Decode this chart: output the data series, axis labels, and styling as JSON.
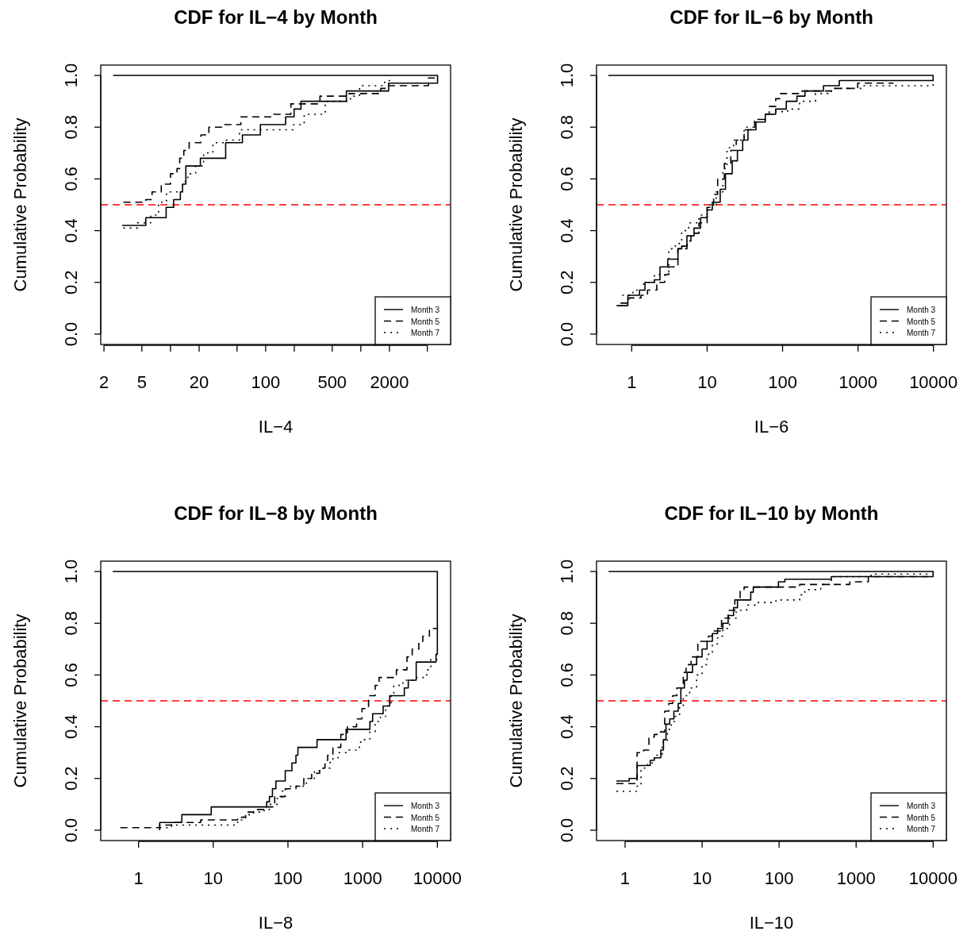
{
  "chart_data": [
    {
      "type": "step",
      "title": "CDF for IL−4 by Month",
      "xlabel": "IL−4",
      "ylabel": "Cumulative Probability",
      "log": "x",
      "legend": "bottom right",
      "xlim": [
        1.85,
        8770
      ],
      "ylim": [
        -0.04,
        1.04
      ],
      "xticks": [
        2,
        5,
        {
          "value": 10,
          "label": null
        },
        20,
        {
          "value": 50,
          "label": null
        },
        100,
        {
          "value": 200,
          "label": null
        },
        500,
        {
          "value": 1000,
          "label": null
        },
        2000,
        {
          "value": 5000,
          "label": null
        }
      ],
      "yticks": [
        {
          "value": 0,
          "label": "0.0"
        },
        {
          "value": 0.2,
          "label": "0.2"
        },
        {
          "value": 0.4,
          "label": "0.4"
        },
        {
          "value": 0.6,
          "label": "0.6"
        },
        {
          "value": 0.8,
          "label": "0.8"
        },
        {
          "value": 1,
          "label": "1.0"
        }
      ],
      "ref_lines": [
        {
          "axis": "y",
          "value": 0.5,
          "color": "#ff0000",
          "line_style": "dashed"
        }
      ],
      "series": [
        {
          "name": "Month 3",
          "color": "#000000",
          "line_style": "solid",
          "x": [
            3.1,
            5.5,
            9,
            10.8,
            12.7,
            13.4,
            14.5,
            20.6,
            38,
            57,
            88,
            162,
            199,
            235,
            705,
            1960,
            6400,
            6400,
            2.5
          ],
          "values": [
            0.42,
            0.45,
            0.49,
            0.52,
            0.55,
            0.58,
            0.65,
            0.68,
            0.74,
            0.77,
            0.81,
            0.84,
            0.87,
            0.9,
            0.94,
            0.97,
            0.97,
            1.0,
            1.0
          ]
        },
        {
          "name": "Month 5",
          "color": "#000000",
          "line_style": "dashed",
          "x": [
            3.2,
            5.5,
            6.4,
            8,
            10,
            11.7,
            12.5,
            13.8,
            15.7,
            20.9,
            25.3,
            37,
            55,
            121,
            184,
            372,
            750,
            1620,
            1960,
            5130,
            6400
          ],
          "values": [
            0.51,
            0.52,
            0.55,
            0.58,
            0.62,
            0.64,
            0.68,
            0.71,
            0.74,
            0.77,
            0.8,
            0.81,
            0.84,
            0.85,
            0.89,
            0.92,
            0.93,
            0.95,
            0.96,
            0.99,
            0.99
          ]
        },
        {
          "name": "Month 7",
          "color": "#000000",
          "line_style": "dotted",
          "x": [
            3.2,
            4.5,
            6.2,
            7.5,
            9.1,
            13.4,
            15.2,
            18.4,
            22.3,
            27.9,
            38.4,
            53,
            196,
            254,
            423,
            777,
            970,
            1780,
            2230
          ],
          "values": [
            0.41,
            0.43,
            0.46,
            0.51,
            0.55,
            0.59,
            0.62,
            0.65,
            0.7,
            0.74,
            0.75,
            0.79,
            0.81,
            0.85,
            0.9,
            0.92,
            0.96,
            0.98,
            0.98
          ]
        }
      ]
    },
    {
      "type": "step",
      "title": "CDF for IL−6 by Month",
      "xlabel": "IL−6",
      "ylabel": "Cumulative Probability",
      "log": "x",
      "legend": "bottom right",
      "xlim": [
        0.342,
        14830
      ],
      "ylim": [
        -0.04,
        1.04
      ],
      "xticks": [
        1,
        10,
        100,
        1000,
        10000
      ],
      "yticks": [
        {
          "value": 0,
          "label": "0.0"
        },
        {
          "value": 0.2,
          "label": "0.2"
        },
        {
          "value": 0.4,
          "label": "0.4"
        },
        {
          "value": 0.6,
          "label": "0.6"
        },
        {
          "value": 0.8,
          "label": "0.8"
        },
        {
          "value": 1,
          "label": "1.0"
        }
      ],
      "ref_lines": [
        {
          "axis": "y",
          "value": 0.5,
          "color": "#ff0000",
          "line_style": "dashed"
        }
      ],
      "series": [
        {
          "name": "Month 3",
          "color": "#000000",
          "line_style": "solid",
          "x": [
            0.63,
            0.89,
            1.27,
            1.5,
            2,
            2.37,
            3,
            4.1,
            4.6,
            5.4,
            6.7,
            8.2,
            10,
            11.7,
            14.9,
            17.5,
            21.5,
            25.2,
            29.6,
            34.8,
            44.4,
            59,
            81,
            112,
            155,
            198,
            348,
            564,
            9900,
            9900,
            0.49
          ],
          "values": [
            0.11,
            0.15,
            0.17,
            0.2,
            0.21,
            0.26,
            0.29,
            0.33,
            0.34,
            0.38,
            0.41,
            0.45,
            0.48,
            0.51,
            0.56,
            0.62,
            0.67,
            0.71,
            0.75,
            0.79,
            0.82,
            0.85,
            0.87,
            0.9,
            0.92,
            0.94,
            0.96,
            0.98,
            0.98,
            1.0,
            1.0
          ]
        },
        {
          "name": "Month 5",
          "color": "#000000",
          "line_style": "dashed",
          "x": [
            0.71,
            0.92,
            1.33,
            1.62,
            2.15,
            2.74,
            3.1,
            4.1,
            5.4,
            6.1,
            7.8,
            10,
            12.2,
            13.8,
            16.9,
            20.6,
            24.3,
            30.9,
            42.7,
            59,
            66.5,
            81,
            92,
            132,
            182,
            480,
            990,
            2950
          ],
          "values": [
            0.12,
            0.14,
            0.15,
            0.17,
            0.2,
            0.23,
            0.26,
            0.33,
            0.36,
            0.39,
            0.43,
            0.49,
            0.54,
            0.6,
            0.66,
            0.71,
            0.75,
            0.79,
            0.83,
            0.85,
            0.88,
            0.91,
            0.93,
            0.93,
            0.94,
            0.95,
            0.97,
            0.97
          ]
        },
        {
          "name": "Month 7",
          "color": "#000000",
          "line_style": "dotted",
          "x": [
            0.75,
            1.04,
            1.44,
            2,
            3.1,
            3.8,
            4.6,
            5.7,
            7.8,
            10,
            13.2,
            16.2,
            18.3,
            22.4,
            30.9,
            42.7,
            59,
            81,
            117,
            168,
            273,
            443,
            1170,
            3070,
            9900
          ],
          "values": [
            0.15,
            0.17,
            0.2,
            0.23,
            0.33,
            0.35,
            0.4,
            0.43,
            0.46,
            0.5,
            0.55,
            0.64,
            0.72,
            0.75,
            0.8,
            0.83,
            0.85,
            0.86,
            0.87,
            0.9,
            0.93,
            0.95,
            0.96,
            0.96,
            0.97
          ]
        }
      ]
    },
    {
      "type": "step",
      "title": "CDF for IL−8 by Month",
      "xlabel": "IL−8",
      "ylabel": "Cumulative Probability",
      "log": "x",
      "legend": "bottom right",
      "xlim": [
        0.312,
        15030
      ],
      "ylim": [
        -0.04,
        1.04
      ],
      "xticks": [
        1,
        10,
        100,
        1000,
        10000
      ],
      "yticks": [
        {
          "value": 0,
          "label": "0.0"
        },
        {
          "value": 0.2,
          "label": "0.2"
        },
        {
          "value": 0.4,
          "label": "0.4"
        },
        {
          "value": 0.6,
          "label": "0.6"
        },
        {
          "value": 0.8,
          "label": "0.8"
        },
        {
          "value": 1,
          "label": "1.0"
        }
      ],
      "ref_lines": [
        {
          "axis": "y",
          "value": 0.5,
          "color": "#ff0000",
          "line_style": "dashed"
        }
      ],
      "series": [
        {
          "name": "Month 3",
          "color": "#000000",
          "line_style": "solid",
          "x": [
            1.92,
            1.92,
            3.8,
            9.4,
            52,
            56.5,
            62,
            69,
            92,
            113,
            128,
            136,
            245,
            600,
            1250,
            1360,
            1880,
            2300,
            3610,
            4080,
            5210,
            9600,
            10000,
            0.45
          ],
          "values": [
            0,
            0.03,
            0.06,
            0.09,
            0.11,
            0.13,
            0.16,
            0.19,
            0.23,
            0.26,
            0.29,
            0.32,
            0.35,
            0.39,
            0.42,
            0.45,
            0.48,
            0.52,
            0.55,
            0.58,
            0.65,
            0.68,
            1.0,
            1.0
          ]
        },
        {
          "name": "Month 5",
          "color": "#000000",
          "line_style": "dashed",
          "x": [
            0.57,
            1.92,
            2.77,
            6.8,
            21.2,
            27.1,
            34.7,
            48,
            66.5,
            92,
            128,
            163,
            208,
            266,
            313,
            340,
            400,
            510,
            625,
            830,
            980,
            1200,
            1470,
            1660,
            2830,
            3920,
            4610,
            5650,
            6390,
            7830,
            10000
          ],
          "values": [
            0.01,
            0.02,
            0.03,
            0.04,
            0.05,
            0.07,
            0.08,
            0.09,
            0.13,
            0.16,
            0.17,
            0.2,
            0.22,
            0.24,
            0.27,
            0.29,
            0.32,
            0.37,
            0.4,
            0.43,
            0.47,
            0.52,
            0.56,
            0.59,
            0.62,
            0.67,
            0.7,
            0.73,
            0.75,
            0.78,
            0.78
          ]
        },
        {
          "name": "Month 7",
          "color": "#000000",
          "line_style": "dotted",
          "x": [
            1.92,
            2.77,
            21.2,
            27.1,
            34.7,
            48,
            56.5,
            72,
            85,
            108,
            177,
            226,
            288,
            368,
            400,
            471,
            652,
            903,
            940,
            1250,
            1470,
            1730,
            2040,
            2400,
            2610,
            3470,
            4800,
            6930,
            7210,
            8170,
            10000
          ],
          "values": [
            0.01,
            0.02,
            0.04,
            0.06,
            0.07,
            0.08,
            0.1,
            0.13,
            0.16,
            0.17,
            0.2,
            0.23,
            0.24,
            0.27,
            0.28,
            0.3,
            0.31,
            0.33,
            0.35,
            0.38,
            0.42,
            0.44,
            0.48,
            0.53,
            0.56,
            0.58,
            0.59,
            0.59,
            0.62,
            0.66,
            0.66
          ]
        }
      ]
    },
    {
      "type": "step",
      "title": "CDF for IL−10 by Month",
      "xlabel": "IL−10",
      "ylabel": "Cumulative Probability",
      "log": "x",
      "legend": "bottom right",
      "xlim": [
        0.426,
        14850
      ],
      "ylim": [
        -0.04,
        1.04
      ],
      "xticks": [
        1,
        10,
        100,
        1000,
        10000
      ],
      "yticks": [
        {
          "value": 0,
          "label": "0.0"
        },
        {
          "value": 0.2,
          "label": "0.2"
        },
        {
          "value": 0.4,
          "label": "0.4"
        },
        {
          "value": 0.6,
          "label": "0.6"
        },
        {
          "value": 0.8,
          "label": "0.8"
        },
        {
          "value": 1,
          "label": "1.0"
        }
      ],
      "ref_lines": [
        {
          "axis": "y",
          "value": 0.5,
          "color": "#ff0000",
          "line_style": "dashed"
        }
      ],
      "series": [
        {
          "name": "Month 3",
          "color": "#000000",
          "line_style": "solid",
          "x": [
            0.77,
            1.13,
            1.43,
            2.12,
            2.39,
            2.91,
            3.15,
            3.4,
            3.8,
            4.3,
            4.9,
            5.3,
            5.9,
            6.4,
            7.5,
            8.5,
            10,
            11.6,
            13.6,
            15.9,
            18.6,
            21.8,
            25.6,
            28.8,
            42.8,
            46.2,
            98,
            119,
            476,
            10000,
            10000,
            0.61
          ],
          "values": [
            0.19,
            0.2,
            0.25,
            0.27,
            0.28,
            0.31,
            0.35,
            0.41,
            0.43,
            0.46,
            0.49,
            0.55,
            0.58,
            0.61,
            0.64,
            0.67,
            0.7,
            0.73,
            0.76,
            0.78,
            0.8,
            0.83,
            0.86,
            0.89,
            0.92,
            0.94,
            0.96,
            0.97,
            0.98,
            0.98,
            1.0,
            1.0
          ]
        },
        {
          "name": "Month 5",
          "color": "#000000",
          "line_style": "dashed",
          "x": [
            0.77,
            1.43,
            1.74,
            2.04,
            2.39,
            2.79,
            3.27,
            3.7,
            4.15,
            4.7,
            5.7,
            6.2,
            7.2,
            8.8,
            12.1,
            13.6,
            17.9,
            21.8,
            26.6,
            31.2,
            35.1,
            185,
            828,
            1440,
            10000
          ],
          "values": [
            0.18,
            0.3,
            0.31,
            0.36,
            0.37,
            0.38,
            0.46,
            0.49,
            0.52,
            0.55,
            0.61,
            0.64,
            0.67,
            0.73,
            0.75,
            0.77,
            0.82,
            0.85,
            0.89,
            0.93,
            0.94,
            0.95,
            0.96,
            0.98,
            0.98
          ]
        },
        {
          "name": "Month 7",
          "color": "#000000",
          "line_style": "dotted",
          "x": [
            0.77,
            1.43,
            1.61,
            1.96,
            2.39,
            3.03,
            3.54,
            3.99,
            4.5,
            5.1,
            5.7,
            6.9,
            8.5,
            10,
            11.6,
            13.6,
            15.9,
            18.6,
            22.7,
            27.7,
            37.9,
            52,
            91,
            185,
            216,
            347,
            476,
            1560,
            10000
          ],
          "values": [
            0.15,
            0.17,
            0.24,
            0.26,
            0.29,
            0.34,
            0.39,
            0.42,
            0.44,
            0.48,
            0.52,
            0.55,
            0.6,
            0.64,
            0.68,
            0.72,
            0.75,
            0.78,
            0.82,
            0.85,
            0.87,
            0.88,
            0.89,
            0.91,
            0.93,
            0.95,
            0.98,
            0.99,
            0.99
          ]
        }
      ]
    }
  ]
}
